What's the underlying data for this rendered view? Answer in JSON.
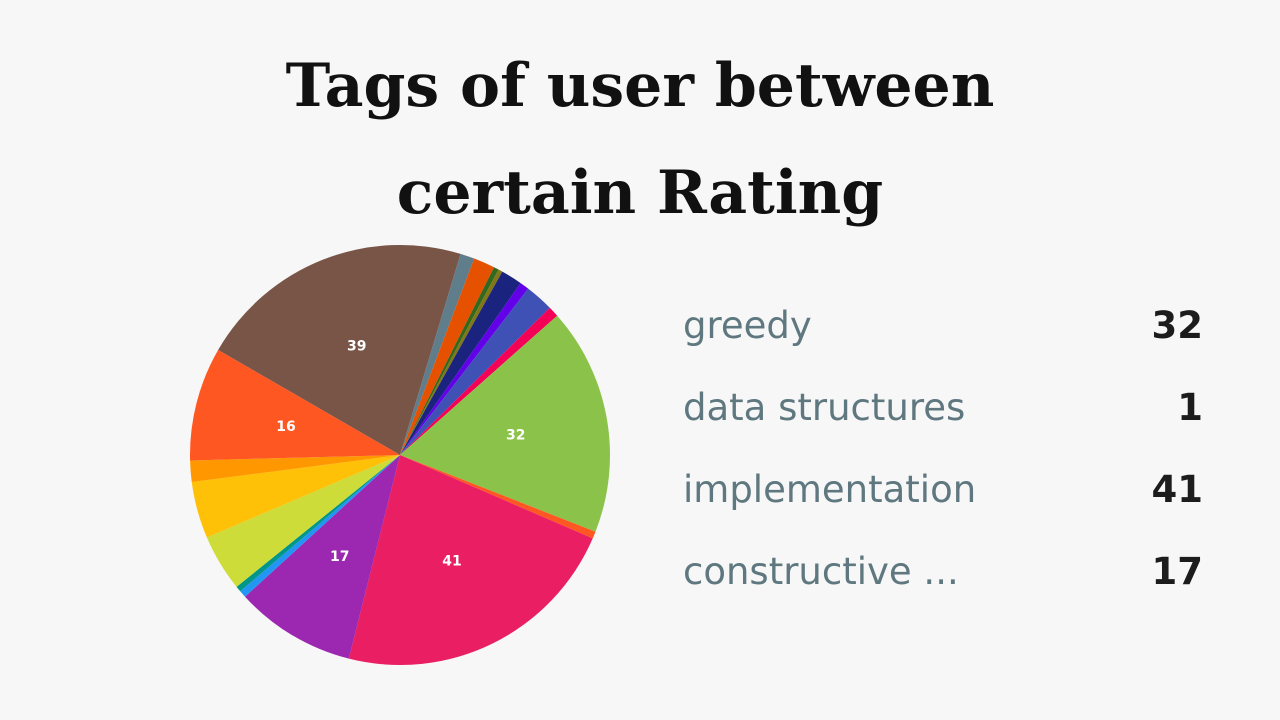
{
  "title_line1": "Tags of user between",
  "title_line2": "certain Rating",
  "chart_data": {
    "type": "pie",
    "title": "Tags of user between certain Rating",
    "slices": [
      {
        "value": 39,
        "label": "39",
        "color": "#795548"
      },
      {
        "value": 2,
        "label": "",
        "color": "#607d8b"
      },
      {
        "value": 3,
        "label": "",
        "color": "#e65100"
      },
      {
        "value": 0.7,
        "label": "",
        "color": "#33691e"
      },
      {
        "value": 0.6,
        "label": "",
        "color": "#827717"
      },
      {
        "value": 3,
        "label": "",
        "color": "#1a237e"
      },
      {
        "value": 1.3,
        "label": "",
        "color": "#6200ea"
      },
      {
        "value": 4,
        "label": "",
        "color": "#3f51b5"
      },
      {
        "value": 1.5,
        "label": "",
        "color": "#f50057"
      },
      {
        "value": 32,
        "label": "32",
        "color": "#8bc34a"
      },
      {
        "value": 1,
        "label": "",
        "color": "#ff5722"
      },
      {
        "value": 41,
        "label": "41",
        "color": "#e91e63"
      },
      {
        "value": 17,
        "label": "17",
        "color": "#9c27b0"
      },
      {
        "value": 1,
        "label": "",
        "color": "#2196f3"
      },
      {
        "value": 0.8,
        "label": "",
        "color": "#009688"
      },
      {
        "value": 8,
        "label": "",
        "color": "#cddc39"
      },
      {
        "value": 8,
        "label": "",
        "color": "#ffc107"
      },
      {
        "value": 3,
        "label": "",
        "color": "#ff9800"
      },
      {
        "value": 16,
        "label": "16",
        "color": "#ff5722"
      }
    ],
    "legend": [
      {
        "name": "greedy",
        "value": "32"
      },
      {
        "name": "data structures",
        "value": "1"
      },
      {
        "name": "implementation",
        "value": "41"
      },
      {
        "name": "constructive ...",
        "value": "17"
      }
    ],
    "legend_position": "right"
  }
}
